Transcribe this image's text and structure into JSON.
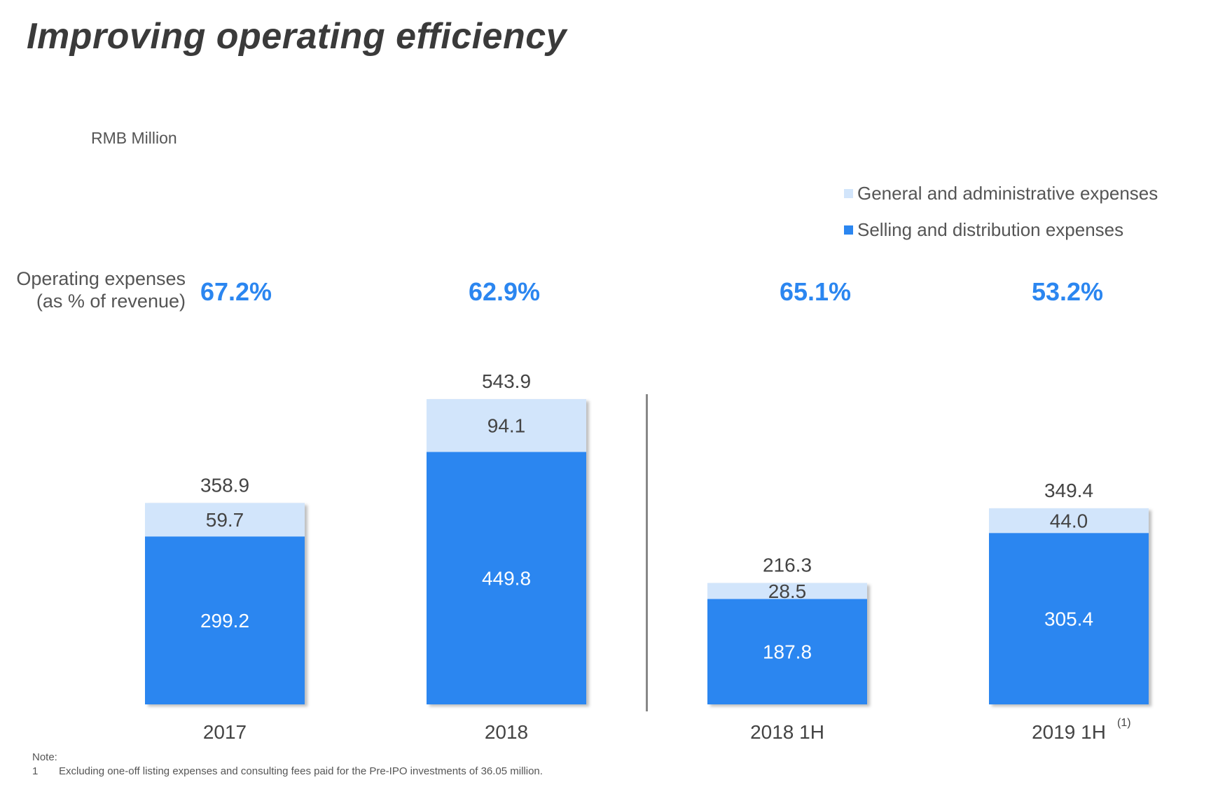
{
  "title": "Improving operating efficiency",
  "unit_label": "RMB Million",
  "legend": [
    {
      "label": "General and administrative expenses",
      "color": "#d2e5fb"
    },
    {
      "label": "Selling and distribution expenses",
      "color": "#2b86f0"
    }
  ],
  "pct_row": {
    "label_line1": "Operating expenses",
    "label_line2": "(as % of revenue)",
    "values": [
      "67.2%",
      "62.9%",
      "65.1%",
      "53.2%"
    ]
  },
  "chart_data": {
    "type": "bar",
    "stacked": true,
    "categories": [
      "2017",
      "2018",
      "2018 1H",
      "2019 1H"
    ],
    "category_superscripts": [
      "",
      "",
      "",
      "(1)"
    ],
    "series": [
      {
        "name": "Selling and distribution expenses",
        "values": [
          299.2,
          449.8,
          187.8,
          305.4
        ],
        "labels": [
          "299.2",
          "449.8",
          "187.8",
          "305.4"
        ],
        "color": "#2b86f0",
        "label_color": "#ffffff"
      },
      {
        "name": "General and administrative expenses",
        "values": [
          59.7,
          94.1,
          28.5,
          44.0
        ],
        "labels": [
          "59.7",
          "94.1",
          "28.5",
          "44.0"
        ],
        "color": "#d2e5fb",
        "label_color": "#444444"
      }
    ],
    "totals": [
      358.9,
      543.9,
      216.3,
      349.4
    ],
    "total_labels": [
      "358.9",
      "543.9",
      "216.3",
      "349.4"
    ],
    "separator_after_index": 1,
    "ylim": [
      0,
      543.9
    ],
    "xlabel": "",
    "ylabel": ""
  },
  "note": {
    "heading": "Note:",
    "items": [
      {
        "num": "1",
        "text": "Excluding one-off listing expenses and consulting fees paid for the Pre-IPO investments of 36.05 million."
      }
    ]
  }
}
